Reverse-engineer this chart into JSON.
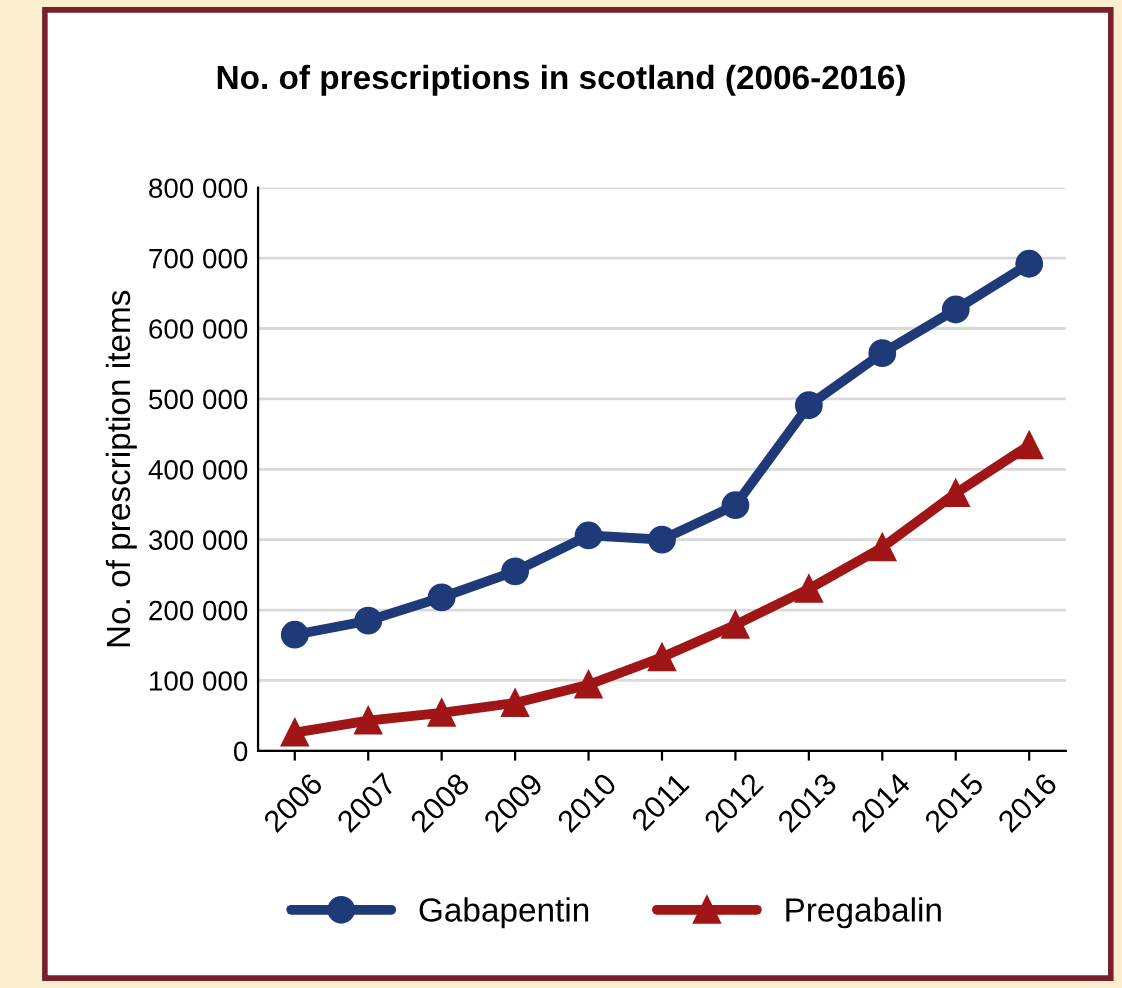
{
  "chart_data": {
    "type": "line",
    "title": "No. of prescriptions in scotland (2006-2016)",
    "ylabel": "No. of prescription items",
    "categories": [
      "2006",
      "2007",
      "2008",
      "2009",
      "2010",
      "2011",
      "2012",
      "2013",
      "2014",
      "2015",
      "2016"
    ],
    "series": [
      {
        "name": "Gabapentin",
        "color": "#1f3a78",
        "marker": "circle",
        "values": [
          165000,
          185000,
          218000,
          255000,
          306000,
          300000,
          349000,
          491000,
          565000,
          627000,
          692000
        ]
      },
      {
        "name": "Pregabalin",
        "color": "#a01515",
        "marker": "triangle",
        "values": [
          26000,
          43000,
          54000,
          68000,
          94000,
          133000,
          179000,
          230000,
          289000,
          366000,
          434000
        ]
      }
    ],
    "ylim": [
      0,
      800000
    ],
    "yticks": [
      {
        "value": 0,
        "label": "0"
      },
      {
        "value": 100000,
        "label": "100 000"
      },
      {
        "value": 200000,
        "label": "200 000"
      },
      {
        "value": 300000,
        "label": "300 000"
      },
      {
        "value": 400000,
        "label": "400 000"
      },
      {
        "value": 500000,
        "label": "500 000"
      },
      {
        "value": 600000,
        "label": "600 000"
      },
      {
        "value": 700000,
        "label": "700 000"
      },
      {
        "value": 800000,
        "label": "800 000"
      }
    ],
    "grid": "y",
    "legend": "bottom",
    "line_style": "solid"
  }
}
